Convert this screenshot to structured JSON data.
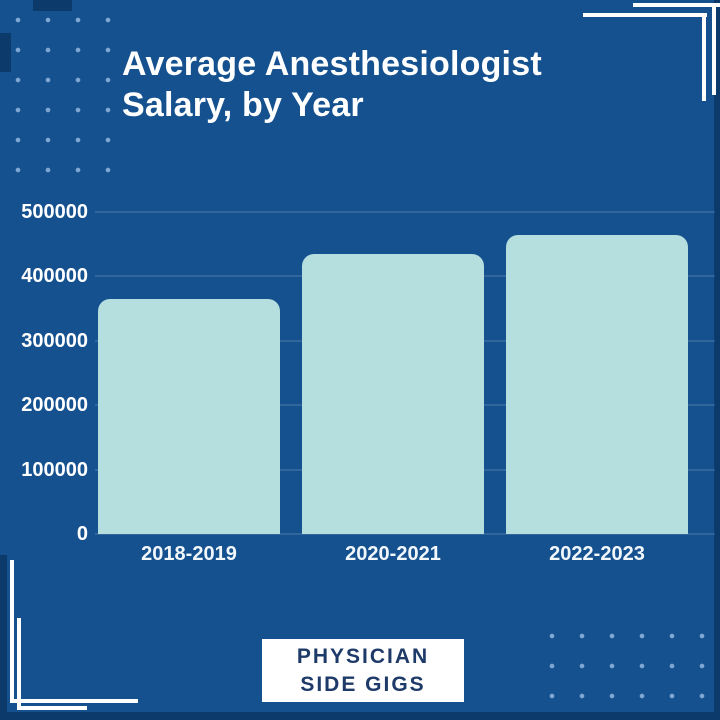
{
  "title": {
    "line1": "Average Anesthesiologist",
    "line2": "Salary, by Year"
  },
  "chart_data": {
    "type": "bar",
    "title": "Average Anesthesiologist Salary, by Year",
    "categories": [
      "2018-2019",
      "2020-2021",
      "2022-2023"
    ],
    "values": [
      365000,
      435000,
      465000
    ],
    "xlabel": "",
    "ylabel": "",
    "ylim": [
      0,
      500000
    ],
    "yticks": [
      0,
      100000,
      200000,
      300000,
      400000,
      500000
    ],
    "ytick_labels": [
      "0",
      "100000",
      "200000",
      "300000",
      "400000",
      "500000"
    ],
    "grid": true,
    "legend": false,
    "bar_color": "#B5DEDE"
  },
  "colors": {
    "background": "#15518F",
    "bar": "#B5DEDE",
    "accent_dark": "#0C3A6B",
    "dots": "#7FA8D2",
    "bracket": "#FFFFFF",
    "title_text": "#FFFFFF",
    "axis_text": "#FFFFFF",
    "logo_bg": "#FFFFFF",
    "logo_text": "#1E3A68"
  },
  "footer": {
    "brand_line1": "PHYSICIAN",
    "brand_line2": "SIDE GIGS"
  }
}
